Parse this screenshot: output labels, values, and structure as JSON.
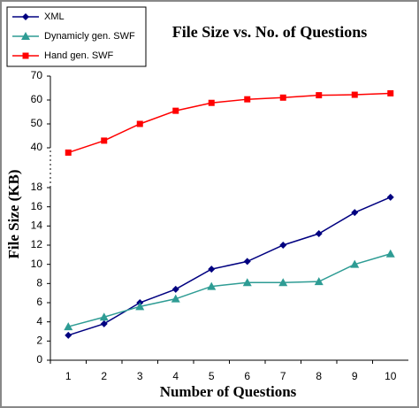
{
  "chart_data": {
    "type": "line",
    "title": "File Size vs. No. of Questions",
    "x_label": "Number of Questions",
    "y_label": "File Size (KB)",
    "categories": [
      1,
      2,
      3,
      4,
      5,
      6,
      7,
      8,
      9,
      10
    ],
    "series": [
      {
        "name": "XML",
        "color": "#000080",
        "marker": "diamond",
        "values": [
          2.6,
          3.8,
          6.0,
          7.4,
          9.5,
          10.3,
          12.0,
          13.2,
          15.4,
          17.0
        ]
      },
      {
        "name": "Dynamicly gen. SWF",
        "color": "#2e9c94",
        "marker": "triangle",
        "values": [
          3.5,
          4.5,
          5.6,
          6.4,
          7.7,
          8.1,
          8.1,
          8.2,
          10.0,
          11.1
        ]
      },
      {
        "name": "Hand gen. SWF",
        "color": "#ff0000",
        "marker": "square",
        "values": [
          38,
          43,
          50,
          55.5,
          58.8,
          60.3,
          61,
          62,
          62.2,
          62.8
        ]
      }
    ],
    "ylim": [
      0,
      70
    ],
    "ybreak": [
      18,
      40
    ],
    "yticks": [
      0,
      2,
      4,
      6,
      8,
      10,
      12,
      14,
      16,
      18,
      40,
      50,
      60,
      70
    ],
    "legend": "top-left",
    "grid": false
  }
}
